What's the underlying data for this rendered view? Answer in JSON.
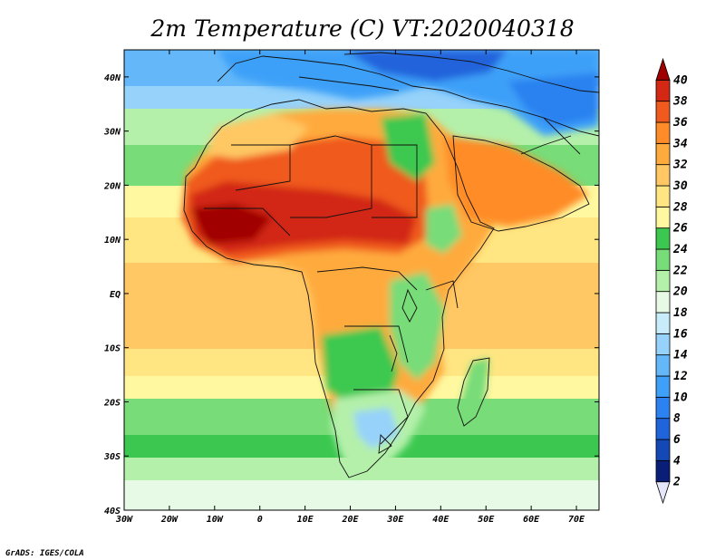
{
  "title": "2m Temperature (C) VT:2020040318",
  "credit": "GrADS: IGES/COLA",
  "map": {
    "lon_range": [
      -30,
      75
    ],
    "lat_range": [
      -40,
      45
    ],
    "x_ticks": [
      "30W",
      "20W",
      "10W",
      "0",
      "10E",
      "20E",
      "30E",
      "40E",
      "50E",
      "60E",
      "70E"
    ],
    "x_tick_values": [
      -30,
      -20,
      -10,
      0,
      10,
      20,
      30,
      40,
      50,
      60,
      70
    ],
    "y_ticks": [
      "40S",
      "30S",
      "20S",
      "10S",
      "EQ",
      "10N",
      "20N",
      "30N",
      "40N"
    ],
    "y_tick_values": [
      -40,
      -30,
      -20,
      -10,
      0,
      10,
      20,
      30,
      40
    ]
  },
  "colorbar": {
    "labels": [
      "2",
      "4",
      "6",
      "8",
      "10",
      "12",
      "14",
      "16",
      "18",
      "20",
      "22",
      "24",
      "26",
      "28",
      "30",
      "32",
      "34",
      "36",
      "38",
      "40"
    ],
    "colors": [
      "#e6e6fa",
      "#0a1e78",
      "#1448b4",
      "#2064dc",
      "#2c82f0",
      "#3ea0f8",
      "#64b8fa",
      "#96d2fa",
      "#c8ecfa",
      "#e6fae6",
      "#b4f0aa",
      "#78dc78",
      "#3cc850",
      "#fff8a0",
      "#ffe682",
      "#ffc864",
      "#ffaa3c",
      "#ff8c28",
      "#f05a1e",
      "#d22814",
      "#a00000"
    ]
  }
}
